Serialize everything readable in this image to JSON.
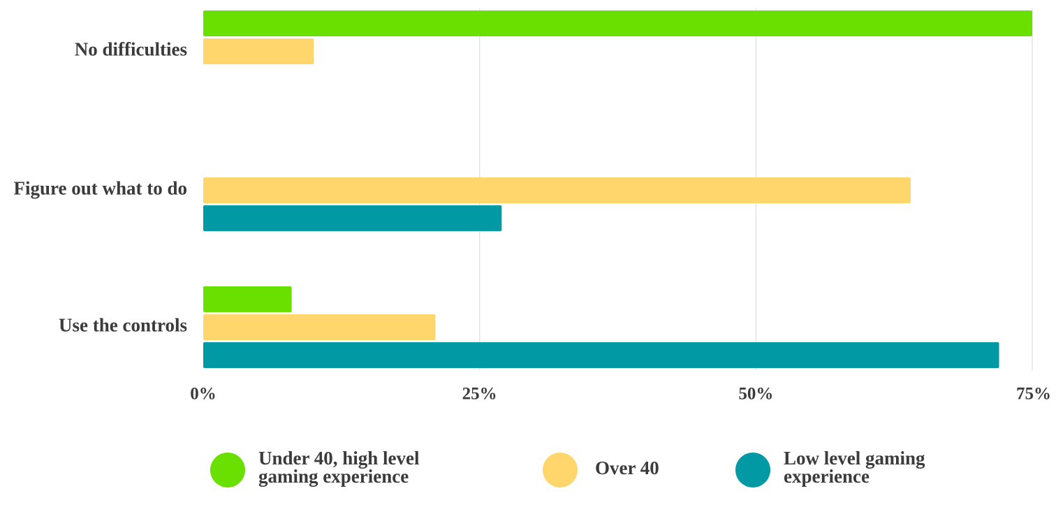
{
  "chart_data": {
    "type": "bar",
    "orientation": "horizontal",
    "categories": [
      "No difficulties",
      "Figure out what to do",
      "Use the controls"
    ],
    "series": [
      {
        "name": "Under 40, high level gaming experience",
        "color": "#6ae000",
        "values": [
          75,
          null,
          8
        ]
      },
      {
        "name": "Over 40",
        "color": "#ffd66b",
        "values": [
          10,
          64,
          21
        ]
      },
      {
        "name": "Low level gaming experience",
        "color": "#0099a4",
        "values": [
          null,
          27,
          72
        ]
      }
    ],
    "x_ticks": [
      "0%",
      "25%",
      "50%",
      "75%"
    ],
    "xlim": [
      0,
      75
    ],
    "grid": true,
    "legend_position": "bottom"
  }
}
